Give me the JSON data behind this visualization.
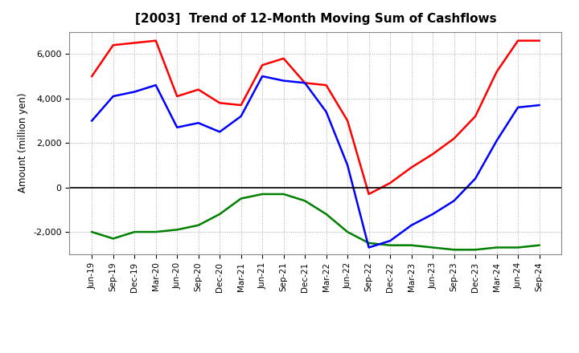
{
  "title": "[2003]  Trend of 12-Month Moving Sum of Cashflows",
  "ylabel": "Amount (million yen)",
  "x_labels": [
    "Jun-19",
    "Sep-19",
    "Dec-19",
    "Mar-20",
    "Jun-20",
    "Sep-20",
    "Dec-20",
    "Mar-21",
    "Jun-21",
    "Sep-21",
    "Dec-21",
    "Mar-22",
    "Jun-22",
    "Sep-22",
    "Dec-22",
    "Mar-23",
    "Jun-23",
    "Sep-23",
    "Dec-23",
    "Mar-24",
    "Jun-24",
    "Sep-24"
  ],
  "operating": [
    5000,
    6400,
    6500,
    6600,
    4100,
    4400,
    3800,
    3700,
    5500,
    5800,
    4700,
    4600,
    3000,
    -300,
    200,
    900,
    1500,
    2200,
    3200,
    5200,
    6600,
    6600
  ],
  "investing": [
    -2000,
    -2300,
    -2000,
    -2000,
    -1900,
    -1700,
    -1200,
    -500,
    -300,
    -300,
    -600,
    -1200,
    -2000,
    -2500,
    -2600,
    -2600,
    -2700,
    -2800,
    -2800,
    -2700,
    -2700,
    -2600
  ],
  "free": [
    3000,
    4100,
    4300,
    4600,
    2700,
    2900,
    2500,
    3200,
    5000,
    4800,
    4700,
    3400,
    1000,
    -2700,
    -2400,
    -1700,
    -1200,
    -600,
    400,
    2100,
    3600,
    3700
  ],
  "ylim": [
    -3000,
    7000
  ],
  "yticks": [
    -2000,
    0,
    2000,
    4000,
    6000
  ],
  "line_colors": {
    "operating": "#ff0000",
    "investing": "#008000",
    "free": "#0000ff"
  },
  "background_color": "#ffffff",
  "plot_bg_color": "#ffffff",
  "grid_color": "#aaaaaa"
}
